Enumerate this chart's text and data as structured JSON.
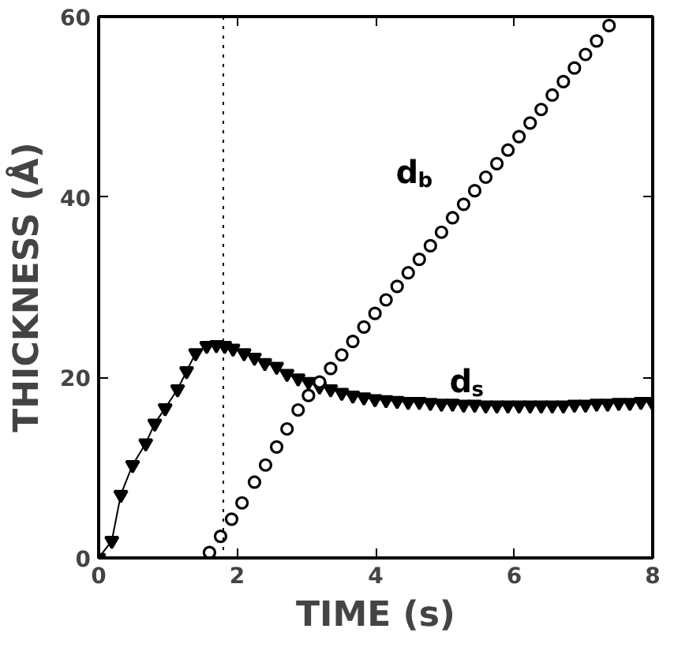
{
  "chart_data": {
    "type": "line",
    "xlabel": "TIME (s)",
    "ylabel": "THICKNESS (Å)",
    "xlim": [
      0,
      8
    ],
    "ylim": [
      0,
      60
    ],
    "xticks": [
      0,
      2,
      4,
      6,
      8
    ],
    "yticks": [
      0,
      20,
      40,
      60
    ],
    "grid": false,
    "ref_lines": [
      {
        "axis": "x",
        "value": 1.8,
        "line_style": "dotted",
        "color": "#000000"
      }
    ],
    "series": [
      {
        "name": "d$_{s}$",
        "marker": "triangle",
        "color": "#000000",
        "x": [
          0,
          0.19,
          0.32,
          0.49,
          0.68,
          0.81,
          0.96,
          1.14,
          1.27,
          1.4,
          1.56,
          1.7,
          1.82,
          1.94,
          2.1,
          2.25,
          2.4,
          2.57,
          2.72,
          2.88,
          3.03,
          3.19,
          3.35,
          3.51,
          3.67,
          3.83,
          3.99,
          4.15,
          4.31,
          4.47,
          4.63,
          4.79,
          4.95,
          5.11,
          5.27,
          5.43,
          5.59,
          5.75,
          5.91,
          6.07,
          6.23,
          6.39,
          6.55,
          6.71,
          6.87,
          7.03,
          7.19,
          7.35,
          7.51,
          7.67,
          7.83,
          7.99
        ],
        "values": [
          0,
          1.9,
          7,
          10.3,
          12.7,
          14.9,
          16.6,
          18.7,
          20.7,
          22.7,
          23.5,
          23.6,
          23.5,
          23.2,
          22.7,
          22.2,
          21.6,
          21.2,
          20.4,
          19.9,
          19.5,
          19.0,
          18.7,
          18.3,
          18.0,
          17.8,
          17.6,
          17.5,
          17.4,
          17.3,
          17.3,
          17.2,
          17.1,
          17.1,
          17.0,
          17.0,
          16.9,
          16.9,
          16.9,
          16.9,
          16.9,
          16.9,
          16.9,
          16.9,
          17.0,
          17.0,
          17.1,
          17.1,
          17.2,
          17.2,
          17.3,
          17.3
        ]
      },
      {
        "name": "d$_{b}$",
        "type": "scatter",
        "marker": "circle",
        "color": "#000000",
        "x": [
          1.6,
          1.76,
          1.92,
          2.07,
          2.25,
          2.41,
          2.57,
          2.72,
          2.88,
          3.03,
          3.19,
          3.35,
          3.51,
          3.67,
          3.83,
          3.99,
          4.15,
          4.31,
          4.47,
          4.63,
          4.79,
          4.95,
          5.11,
          5.27,
          5.43,
          5.59,
          5.75,
          5.91,
          6.07,
          6.23,
          6.39,
          6.55,
          6.71,
          6.87,
          7.03,
          7.19,
          7.37
        ],
        "values": [
          0.6,
          2.4,
          4.3,
          6.1,
          8.4,
          10.3,
          12.3,
          14.3,
          16.4,
          18.0,
          19.5,
          21.0,
          22.5,
          24.0,
          25.6,
          27.1,
          28.6,
          30.1,
          31.6,
          33.1,
          34.6,
          36.1,
          37.7,
          39.2,
          40.7,
          42.2,
          43.7,
          45.2,
          46.7,
          48.2,
          49.7,
          51.3,
          52.8,
          54.3,
          55.8,
          57.3,
          59.0
        ]
      }
    ]
  }
}
